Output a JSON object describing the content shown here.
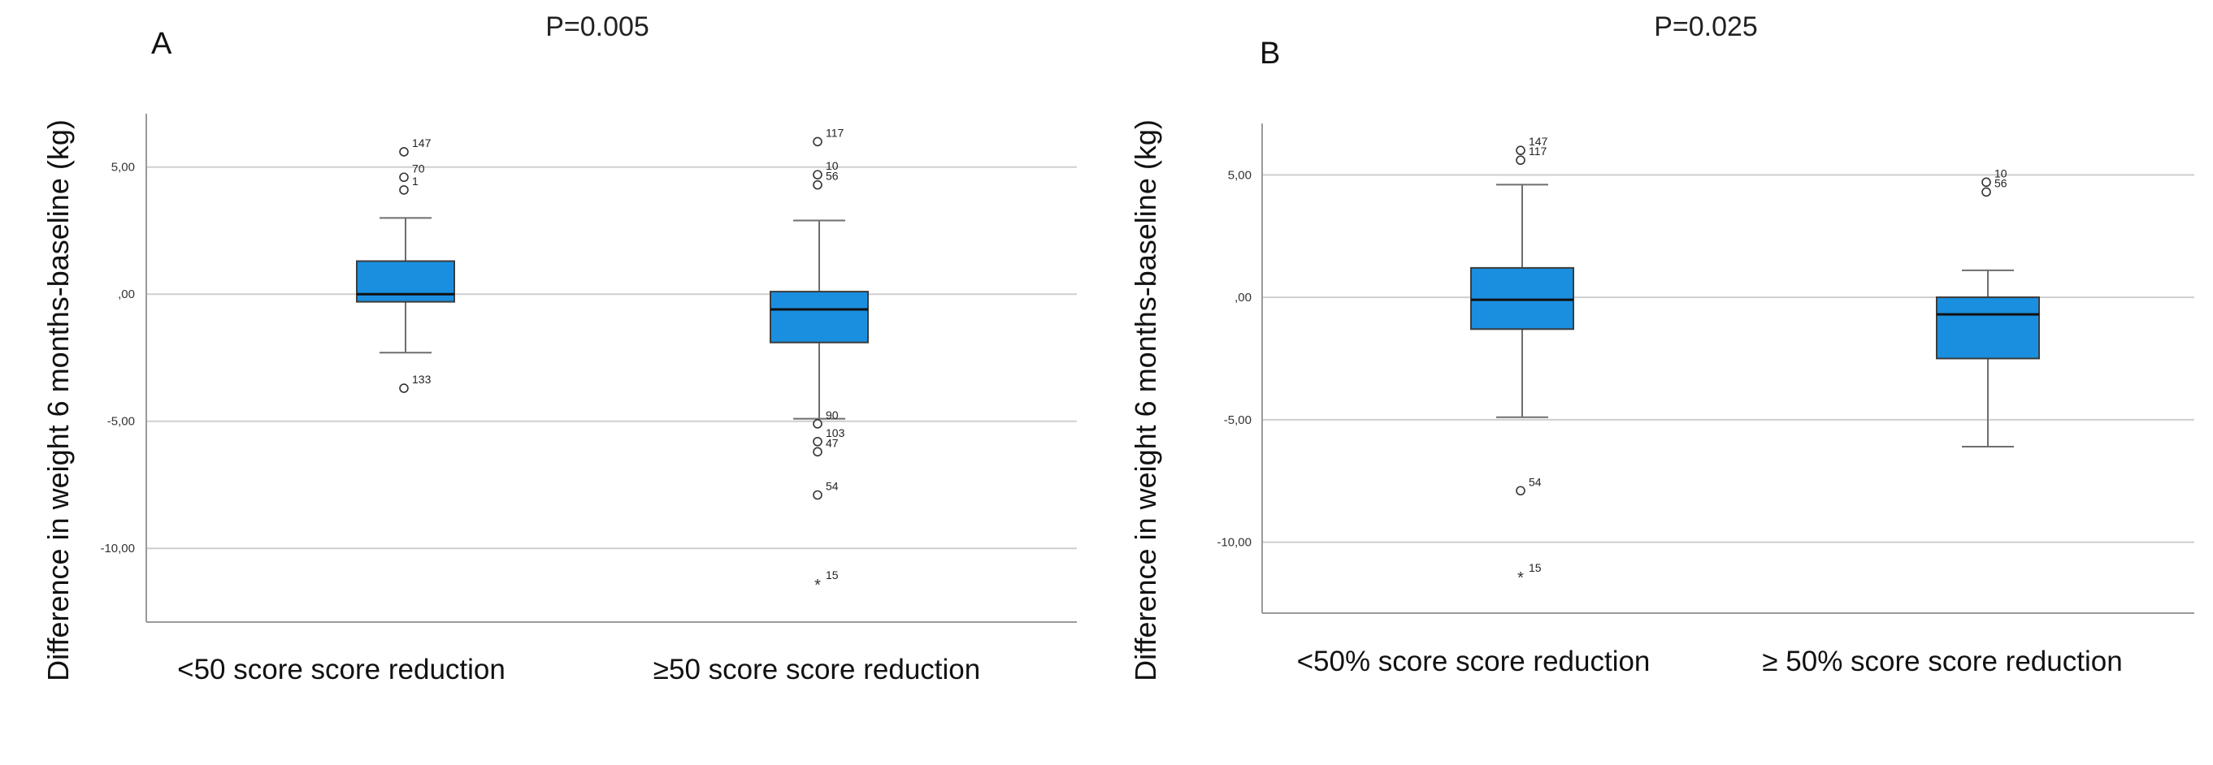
{
  "chart_data": [
    {
      "type": "box",
      "panel": "A",
      "title": "P=0.005",
      "ylabel": "Difference  in weight  6 months-baseline  (kg)",
      "ylim": [
        -12.9,
        7.1
      ],
      "yticks": [
        5,
        0,
        -5,
        -10
      ],
      "ytick_labels": [
        "5,00",
        ",00",
        "-5,00",
        "-10,00"
      ],
      "categories": [
        "<50 score  score reduction",
        "≥50 score  score reduction"
      ],
      "boxes": [
        {
          "q1": -0.3,
          "median": 0.0,
          "q3": 1.3,
          "whisker_low": -2.3,
          "whisker_high": 3.0,
          "outliers": [
            {
              "value": 5.6,
              "label": "147",
              "kind": "o"
            },
            {
              "value": 4.6,
              "label": "70",
              "kind": "o"
            },
            {
              "value": 4.1,
              "label": "1",
              "kind": "o"
            },
            {
              "value": -3.7,
              "label": "133",
              "kind": "o"
            }
          ]
        },
        {
          "q1": -1.9,
          "median": -0.6,
          "q3": 0.1,
          "whisker_low": -4.9,
          "whisker_high": 2.9,
          "outliers": [
            {
              "value": 6.0,
              "label": "117",
              "kind": "o"
            },
            {
              "value": 4.7,
              "label": "10",
              "kind": "o"
            },
            {
              "value": 4.3,
              "label": "56",
              "kind": "o"
            },
            {
              "value": -5.1,
              "label": "90",
              "kind": "o"
            },
            {
              "value": -5.8,
              "label": "103",
              "kind": "o"
            },
            {
              "value": -6.2,
              "label": "47",
              "kind": "o"
            },
            {
              "value": -7.9,
              "label": "54",
              "kind": "o"
            },
            {
              "value": -11.4,
              "label": "15",
              "kind": "*"
            }
          ]
        }
      ]
    },
    {
      "type": "box",
      "panel": "B",
      "title": "P=0.025",
      "ylabel": "Difference  in weight  6 months-baseline  (kg)",
      "ylim": [
        -12.9,
        7.1
      ],
      "yticks": [
        5,
        0,
        -5,
        -10
      ],
      "ytick_labels": [
        "5,00",
        ",00",
        "-5,00",
        "-10,00"
      ],
      "categories": [
        "<50% score  score reduction",
        "≥ 50% score  score reduction"
      ],
      "boxes": [
        {
          "q1": -1.3,
          "median": -0.1,
          "q3": 1.2,
          "whisker_low": -4.9,
          "whisker_high": 4.6,
          "outliers": [
            {
              "value": 6.0,
              "label": "147",
              "kind": "o"
            },
            {
              "value": 5.6,
              "label": "117",
              "kind": "o"
            },
            {
              "value": -7.9,
              "label": "54",
              "kind": "o"
            },
            {
              "value": -11.4,
              "label": "15",
              "kind": "*"
            }
          ]
        },
        {
          "q1": -2.5,
          "median": -0.7,
          "q3": 0.0,
          "whisker_low": -6.1,
          "whisker_high": 1.1,
          "outliers": [
            {
              "value": 4.7,
              "label": "10",
              "kind": "o"
            },
            {
              "value": 4.3,
              "label": "56",
              "kind": "o"
            }
          ]
        }
      ]
    }
  ]
}
